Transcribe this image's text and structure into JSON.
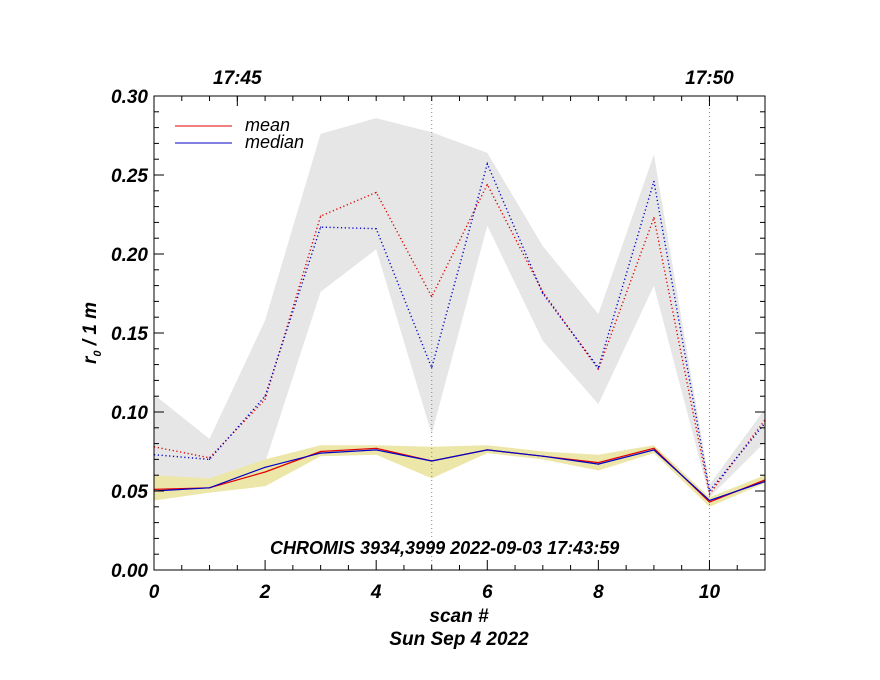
{
  "chart_data": {
    "type": "line",
    "title": "",
    "annotation": "CHROMIS 3934,3999 2022-09-03 17:43:59",
    "xlabel": "scan #",
    "xlabel2": "Sun Sep  4 2022",
    "ylabel_main": "r",
    "ylabel_sub": "0",
    "ylabel_rest": " / 1 m",
    "xlim": [
      0,
      11
    ],
    "ylim": [
      0,
      0.3
    ],
    "x_ticks": [
      "0",
      "2",
      "4",
      "6",
      "8",
      "10"
    ],
    "x_tick_values": [
      0,
      2,
      4,
      6,
      8,
      10
    ],
    "y_ticks": [
      "0.00",
      "0.05",
      "0.10",
      "0.15",
      "0.20",
      "0.25",
      "0.30"
    ],
    "y_tick_values": [
      0,
      0.05,
      0.1,
      0.15,
      0.2,
      0.25,
      0.3
    ],
    "top_axis": {
      "ticks": [
        "17:45",
        "17:50"
      ],
      "positions": [
        1.5,
        10
      ]
    },
    "vertical_dotted_lines": [
      5,
      10
    ],
    "x": [
      0,
      1,
      2,
      3,
      4,
      5,
      6,
      7,
      8,
      9,
      10,
      11
    ],
    "legend": {
      "placement": "top-left"
    },
    "series": [
      {
        "name": "mean",
        "role": "lower-mean",
        "color": "#e00000",
        "style": "solid",
        "values": [
          0.051,
          0.052,
          0.062,
          0.075,
          0.077,
          0.069,
          0.076,
          0.072,
          0.068,
          0.077,
          0.043,
          0.057
        ]
      },
      {
        "name": "median",
        "role": "lower-median",
        "color": "#0000c8",
        "style": "solid",
        "values": [
          0.05,
          0.052,
          0.065,
          0.074,
          0.076,
          0.069,
          0.076,
          0.072,
          0.067,
          0.076,
          0.044,
          0.056
        ]
      },
      {
        "role": "upper-mean",
        "color": "#e00000",
        "style": "dotted",
        "values": [
          0.078,
          0.071,
          0.108,
          0.224,
          0.239,
          0.173,
          0.244,
          0.176,
          0.127,
          0.223,
          0.048,
          0.095
        ]
      },
      {
        "role": "upper-median",
        "color": "#0000c8",
        "style": "dotted",
        "values": [
          0.073,
          0.07,
          0.11,
          0.217,
          0.216,
          0.128,
          0.257,
          0.175,
          0.128,
          0.246,
          0.05,
          0.093
        ]
      }
    ],
    "bands": [
      {
        "role": "upper-range",
        "color": "#e6e6e6",
        "low": [
          0.058,
          0.058,
          0.068,
          0.176,
          0.203,
          0.086,
          0.218,
          0.145,
          0.105,
          0.18,
          0.046,
          0.081
        ],
        "high": [
          0.111,
          0.083,
          0.158,
          0.276,
          0.286,
          0.277,
          0.264,
          0.205,
          0.162,
          0.263,
          0.054,
          0.102
        ]
      },
      {
        "role": "lower-range",
        "color": "#ece6a8",
        "low": [
          0.044,
          0.049,
          0.053,
          0.072,
          0.073,
          0.058,
          0.074,
          0.07,
          0.063,
          0.074,
          0.04,
          0.055
        ],
        "high": [
          0.06,
          0.058,
          0.07,
          0.079,
          0.079,
          0.078,
          0.079,
          0.075,
          0.073,
          0.079,
          0.046,
          0.06
        ]
      }
    ]
  }
}
